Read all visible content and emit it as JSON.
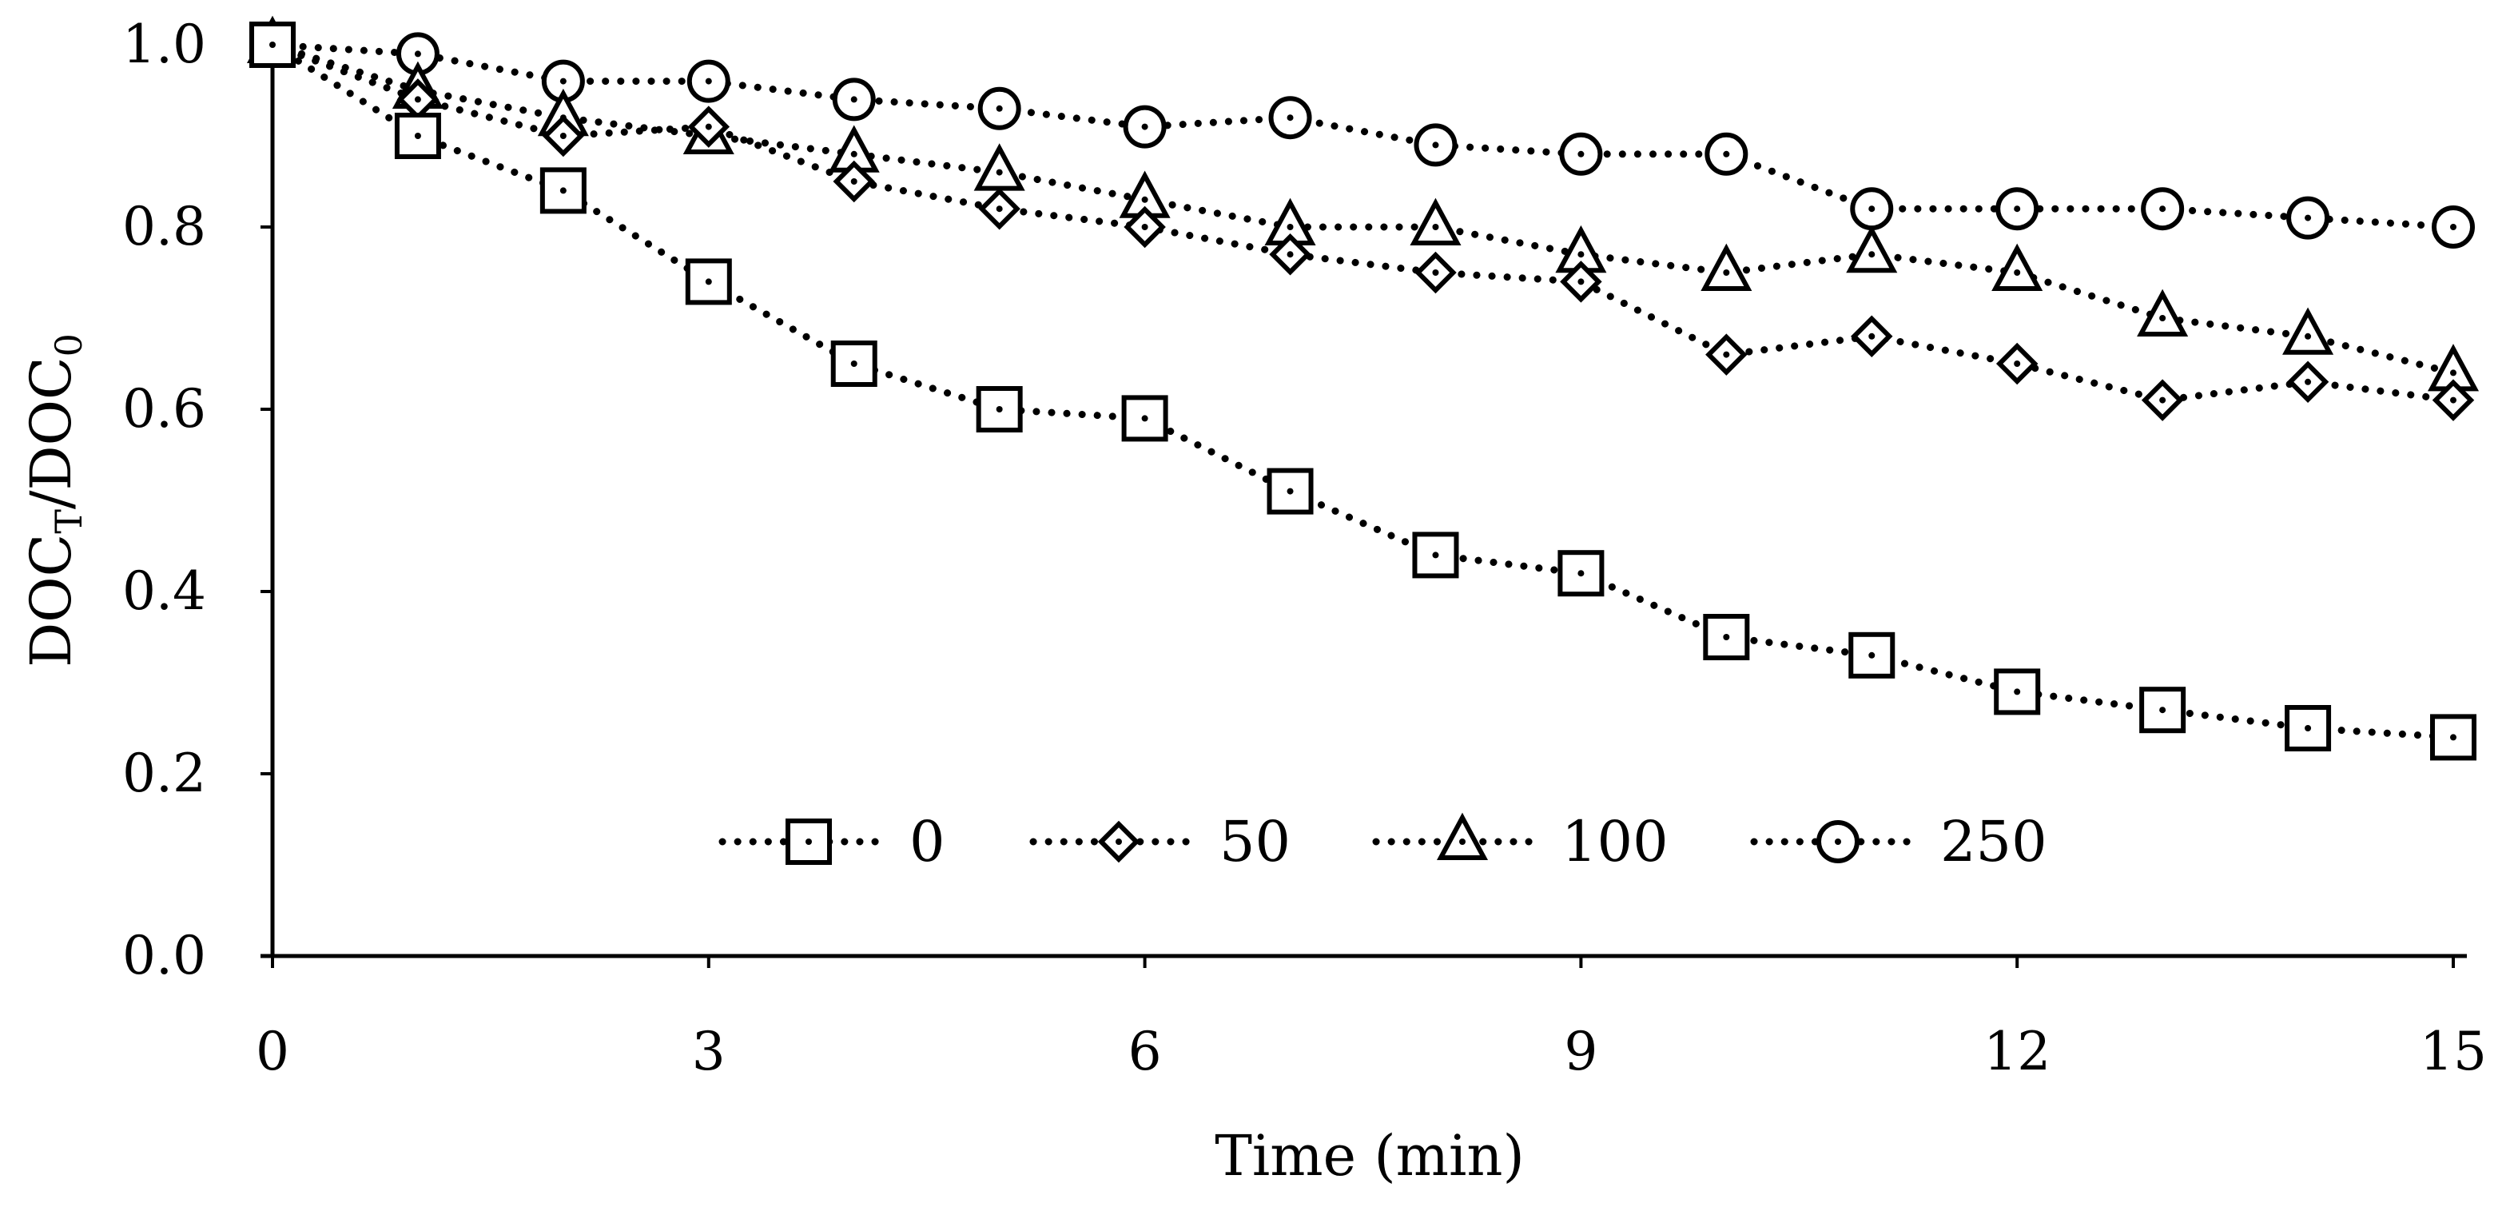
{
  "chart_data": {
    "type": "line",
    "xlabel": "Time (min)",
    "ylabel": {
      "main": "DOC",
      "sub_t": "T",
      "sep": "/",
      "main2": "DOC",
      "sub_0": "0"
    },
    "xlim": [
      0,
      15
    ],
    "ylim": [
      0,
      1
    ],
    "xticks": [
      0,
      3,
      6,
      9,
      12,
      15
    ],
    "yticks": [
      0,
      0.2,
      0.4,
      0.6,
      0.8,
      1.0
    ],
    "ytick_labels": [
      "0.0",
      "0.2",
      "0.4",
      "0.6",
      "0.8",
      "1.0"
    ],
    "grid": false,
    "legend_position": "bottom-center",
    "series": [
      {
        "name": "0",
        "marker": "square",
        "x": [
          0,
          1,
          2,
          3,
          4,
          5,
          6,
          7,
          8,
          9,
          10,
          11,
          12,
          13,
          14,
          15
        ],
        "values": [
          1.0,
          0.9,
          0.84,
          0.74,
          0.65,
          0.6,
          0.59,
          0.51,
          0.44,
          0.42,
          0.35,
          0.33,
          0.29,
          0.27,
          0.25,
          0.24
        ]
      },
      {
        "name": "50",
        "marker": "diamond",
        "x": [
          0,
          1,
          2,
          3,
          4,
          5,
          6,
          7,
          8,
          9,
          10,
          11,
          12,
          13,
          14,
          15
        ],
        "values": [
          1.0,
          0.94,
          0.9,
          0.91,
          0.85,
          0.82,
          0.8,
          0.77,
          0.75,
          0.74,
          0.66,
          0.68,
          0.65,
          0.61,
          0.63,
          0.61
        ]
      },
      {
        "name": "100",
        "marker": "triangle",
        "x": [
          0,
          1,
          2,
          3,
          4,
          5,
          6,
          7,
          8,
          9,
          10,
          11,
          12,
          13,
          14,
          15
        ],
        "values": [
          1.0,
          0.95,
          0.92,
          0.9,
          0.88,
          0.86,
          0.83,
          0.8,
          0.8,
          0.77,
          0.75,
          0.77,
          0.75,
          0.7,
          0.68,
          0.64
        ]
      },
      {
        "name": "250",
        "marker": "circle",
        "x": [
          0,
          1,
          2,
          3,
          4,
          5,
          6,
          7,
          8,
          9,
          10,
          11,
          12,
          13,
          14,
          15
        ],
        "values": [
          1.0,
          0.99,
          0.96,
          0.96,
          0.94,
          0.93,
          0.91,
          0.92,
          0.89,
          0.88,
          0.88,
          0.82,
          0.82,
          0.82,
          0.81,
          0.8
        ]
      }
    ]
  }
}
